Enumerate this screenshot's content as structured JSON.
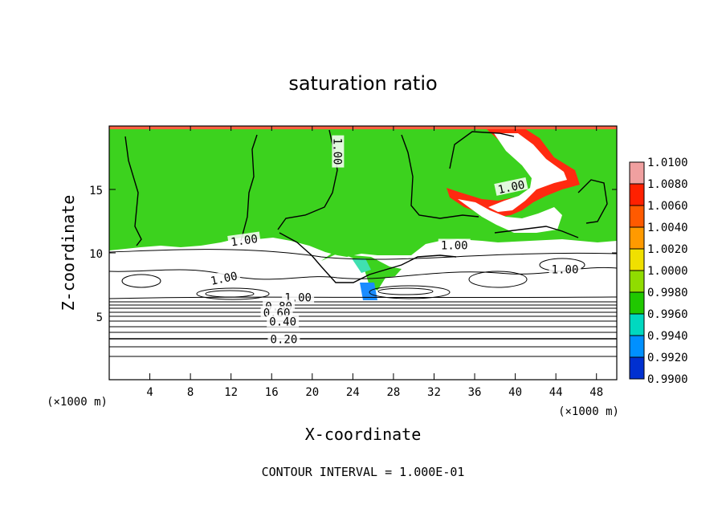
{
  "chart_data": {
    "type": "heatmap",
    "title": "saturation ratio",
    "xlabel": "X-coordinate",
    "ylabel": "Z-coordinate",
    "x_unit": "(×1000 m)",
    "z_unit": "(×1000 m)",
    "xlim": [
      0,
      50
    ],
    "ylim": [
      0,
      20
    ],
    "x_ticks": [
      4,
      8,
      12,
      16,
      20,
      24,
      28,
      32,
      36,
      40,
      44,
      48
    ],
    "y_ticks": [
      5,
      10,
      15
    ],
    "footnote": "CONTOUR INTERVAL = 1.000E-01",
    "colorbar": {
      "levels": [
        "1.0100",
        "1.0080",
        "1.0060",
        "1.0040",
        "1.0020",
        "1.0000",
        "0.9980",
        "0.9960",
        "0.9940",
        "0.9920",
        "0.9900"
      ],
      "colors": [
        "#f0a0a0",
        "#ff2000",
        "#ff5a00",
        "#ff9a00",
        "#f0e000",
        "#90dc00",
        "#20c800",
        "#00d8c0",
        "#0090ff",
        "#0030d0",
        "#7000a0"
      ]
    },
    "contour_labels": [
      {
        "text": "1.00",
        "x": 22.5,
        "z": 18.0,
        "rot": 90
      },
      {
        "text": "1.00",
        "x": 39.6,
        "z": 15.2,
        "rot": -12
      },
      {
        "text": "1.00",
        "x": 13.3,
        "z": 11.0,
        "rot": -8
      },
      {
        "text": "1.00",
        "x": 34.0,
        "z": 10.6,
        "rot": 0
      },
      {
        "text": "1.00",
        "x": 44.9,
        "z": 8.7,
        "rot": 0
      },
      {
        "text": "1.00",
        "x": 11.3,
        "z": 8.0,
        "rot": -12
      },
      {
        "text": "1.00",
        "x": 18.6,
        "z": 6.5,
        "rot": 0
      },
      {
        "text": "0.80",
        "x": 16.7,
        "z": 5.8,
        "rot": 0
      },
      {
        "text": "0.60",
        "x": 16.5,
        "z": 5.3,
        "rot": 0
      },
      {
        "text": "0.40",
        "x": 17.1,
        "z": 4.6,
        "rot": 0
      },
      {
        "text": "0.20",
        "x": 17.2,
        "z": 3.2,
        "rot": 0
      }
    ]
  }
}
